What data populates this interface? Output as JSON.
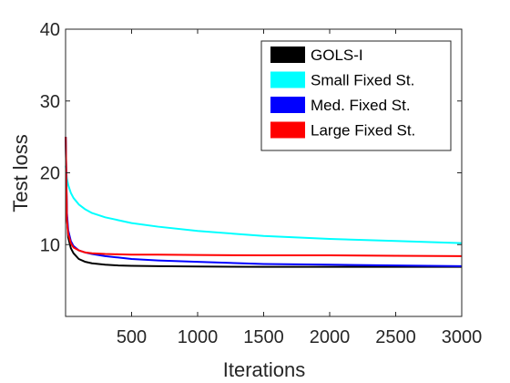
{
  "chart_data": {
    "type": "line",
    "title": "",
    "xlabel": "Iterations",
    "ylabel": "Test loss",
    "xlim": [
      0,
      3000
    ],
    "ylim": [
      0,
      40
    ],
    "xticks": [
      500,
      1000,
      1500,
      2000,
      2500,
      3000
    ],
    "yticks": [
      10,
      20,
      30,
      40
    ],
    "grid": false,
    "legend_position": "top-right",
    "series": [
      {
        "name": "GOLS-I",
        "color": "#000000",
        "x": [
          1,
          10,
          20,
          40,
          60,
          100,
          150,
          200,
          300,
          400,
          500,
          700,
          1000,
          1500,
          2000,
          2500,
          3000
        ],
        "y": [
          25.0,
          14.0,
          11.0,
          9.5,
          8.8,
          8.0,
          7.6,
          7.4,
          7.2,
          7.1,
          7.05,
          7.0,
          6.95,
          6.9,
          6.9,
          6.9,
          6.9
        ]
      },
      {
        "name": "Small Fixed St.",
        "color": "#00ffff",
        "x": [
          1,
          10,
          20,
          40,
          60,
          100,
          150,
          200,
          300,
          400,
          500,
          700,
          1000,
          1500,
          2000,
          2500,
          3000
        ],
        "y": [
          21.0,
          19.2,
          18.3,
          17.2,
          16.5,
          15.6,
          14.9,
          14.4,
          13.8,
          13.4,
          13.0,
          12.5,
          11.9,
          11.2,
          10.8,
          10.5,
          10.2
        ]
      },
      {
        "name": "Med. Fixed St.",
        "color": "#0000ff",
        "x": [
          1,
          10,
          20,
          40,
          60,
          100,
          150,
          200,
          300,
          400,
          500,
          700,
          1000,
          1500,
          2000,
          2500,
          3000
        ],
        "y": [
          25.0,
          14.5,
          12.0,
          10.5,
          9.8,
          9.2,
          8.9,
          8.7,
          8.4,
          8.2,
          8.0,
          7.8,
          7.6,
          7.3,
          7.2,
          7.1,
          7.0
        ]
      },
      {
        "name": "Large Fixed St.",
        "color": "#ff0000",
        "x": [
          1,
          10,
          20,
          40,
          60,
          100,
          150,
          200,
          300,
          400,
          500,
          700,
          1000,
          1500,
          2000,
          2500,
          3000
        ],
        "y": [
          25.0,
          13.5,
          11.5,
          10.2,
          9.6,
          9.2,
          8.9,
          8.8,
          8.7,
          8.65,
          8.6,
          8.6,
          8.55,
          8.5,
          8.5,
          8.45,
          8.4
        ]
      }
    ]
  }
}
